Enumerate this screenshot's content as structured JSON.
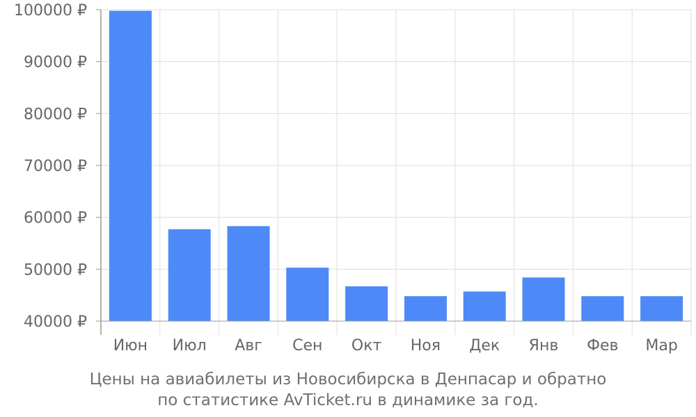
{
  "chart_data": {
    "type": "bar",
    "categories": [
      "Июн",
      "Июл",
      "Авг",
      "Сен",
      "Окт",
      "Ноя",
      "Дек",
      "Янв",
      "Фев",
      "Мар"
    ],
    "values": [
      99800,
      57700,
      58300,
      50300,
      46700,
      44800,
      45700,
      48400,
      44800,
      44800
    ],
    "ylim": [
      40000,
      100000
    ],
    "yticks": [
      40000,
      50000,
      60000,
      70000,
      80000,
      90000,
      100000
    ],
    "ytick_suffix": " ₽",
    "grid": true,
    "legend": "none"
  },
  "caption": {
    "line1": "Цены на авиабилеты из Новосибирска в Денпасар и обратно",
    "line2": "по статистике AvTicket.ru в динамике за год."
  },
  "colors": {
    "bar": "#4d8af7",
    "grid": "#dddddd",
    "axis": "#999999",
    "text": "#666666"
  }
}
